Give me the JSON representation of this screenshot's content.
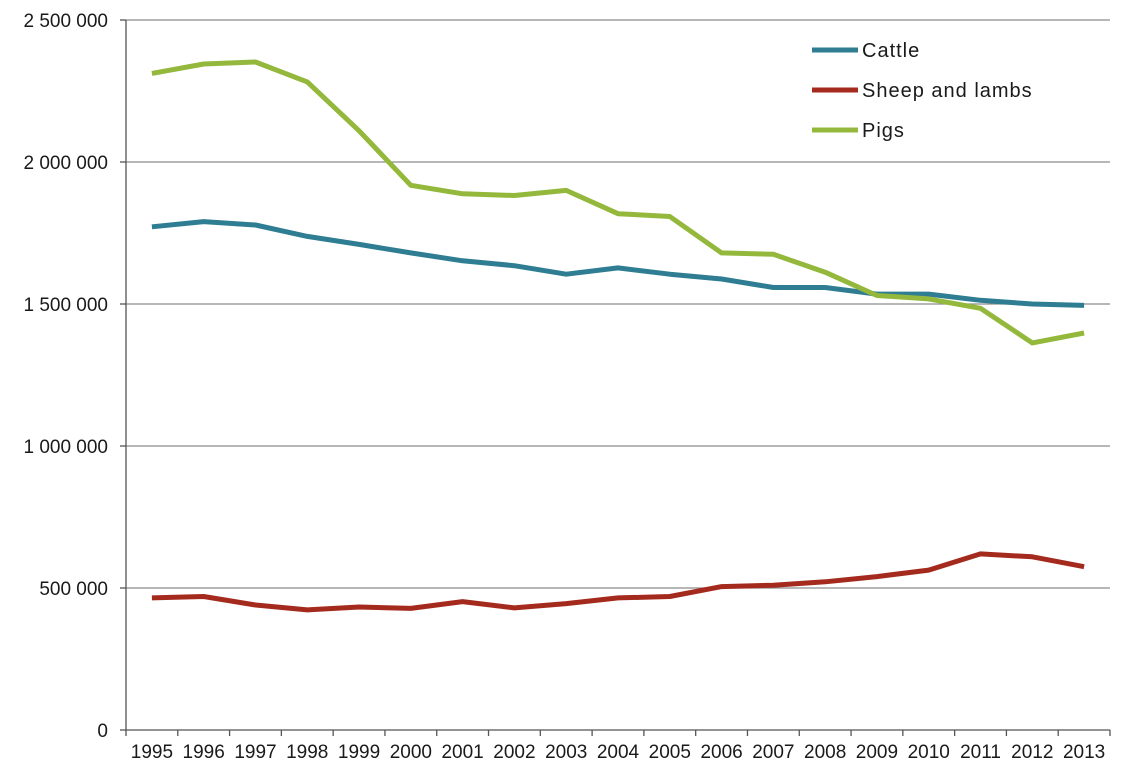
{
  "chart_data": {
    "type": "line",
    "title": "",
    "xlabel": "",
    "ylabel": "",
    "x": [
      "1995",
      "1996",
      "1997",
      "1998",
      "1999",
      "2000",
      "2001",
      "2002",
      "2003",
      "2004",
      "2005",
      "2006",
      "2007",
      "2008",
      "2009",
      "2010",
      "2011",
      "2012",
      "2013"
    ],
    "ylim": [
      0,
      2500000
    ],
    "yticks": [
      0,
      500000,
      1000000,
      1500000,
      2000000,
      2500000
    ],
    "ytick_labels": [
      "0",
      "500 000",
      "1 000 000",
      "1 500 000",
      "2 000 000",
      "2 500 000"
    ],
    "grid": "horizontal",
    "legend_position": "top-right",
    "series": [
      {
        "name": "Cattle",
        "color": "#2e7d92",
        "values": [
          1772000,
          1790000,
          1778000,
          1738000,
          1710000,
          1680000,
          1652000,
          1635000,
          1605000,
          1627000,
          1605000,
          1588000,
          1558000,
          1558000,
          1535000,
          1535000,
          1513000,
          1500000,
          1495000
        ]
      },
      {
        "name": "Sheep and lambs",
        "color": "#a52a1e",
        "values": [
          465000,
          470000,
          440000,
          423000,
          433000,
          428000,
          452000,
          430000,
          445000,
          465000,
          470000,
          505000,
          510000,
          522000,
          540000,
          563000,
          620000,
          610000,
          575000
        ]
      },
      {
        "name": "Pigs",
        "color": "#94b83c",
        "values": [
          2312000,
          2345000,
          2352000,
          2282000,
          2110000,
          1918000,
          1888000,
          1882000,
          1900000,
          1818000,
          1808000,
          1680000,
          1675000,
          1612000,
          1530000,
          1518000,
          1485000,
          1363000,
          1398000
        ]
      }
    ]
  }
}
